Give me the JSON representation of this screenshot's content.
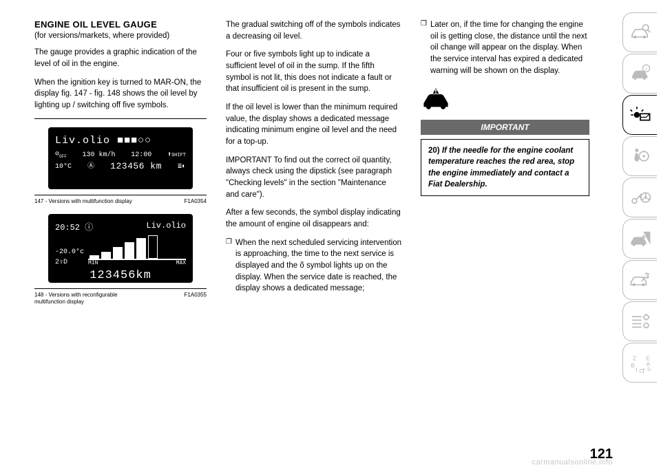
{
  "page_number": "121",
  "watermark": "carmanualsonline.info",
  "col1": {
    "heading": "ENGINE OIL LEVEL GAUGE",
    "subhead": "(for versions/markets, where provided)",
    "p1": "The gauge provides a graphic indication of the level of oil in the engine.",
    "p2": "When the ignition key is turned to MAR-ON, the display fig. 147 - fig. 148 shows the oil level by lighting up / switching off five symbols.",
    "fig1": {
      "title_line": "Liv.olio ■■■○○",
      "speed": "130 km/h",
      "time": "12:00",
      "shift": "SHIFT",
      "temp": "10°C",
      "odometer": "123456 km",
      "caption_left": "147 - Versions with multifunction display",
      "caption_right": "F1A0354"
    },
    "fig2": {
      "time": "20:52",
      "title": "Liv.olio",
      "temp": "-20.0°c",
      "gear": "2⇧D",
      "min": "MIN",
      "max": "MAX",
      "odometer": "123456km",
      "caption_left": "148 - Versions with reconfigurable multifunction display",
      "caption_right": "F1A0355",
      "bars": [
        0.15,
        0.3,
        0.5,
        0.7,
        0.9,
        1.0
      ],
      "bars_filled": [
        true,
        true,
        true,
        true,
        true,
        false
      ]
    }
  },
  "col2": {
    "p1": "The gradual switching off of the symbols indicates a decreasing oil level.",
    "p2": "Four or five symbols light up to indicate a sufficient level of oil in the sump. If the fifth symbol is not lit, this does not indicate a fault or that insufficient oil is present in the sump.",
    "p3": "If the oil level is lower than the minimum required value, the display shows a dedicated message indicating minimum engine oil level and the need for a top-up.",
    "p4": "IMPORTANT To find out the correct oil quantity, always check using the dipstick (see paragraph \"Checking levels\" in the section \"Maintenance and care\").",
    "p5": "After a few seconds, the symbol display indicating the amount of engine oil disappears and:",
    "li1": "When the next scheduled servicing intervention is approaching, the time to the next service is displayed and the õ symbol lights up on the display. When the service date is reached, the display shows a dedicated message;"
  },
  "col3": {
    "li1": "Later on, if the time for changing the engine oil is getting close, the distance until the next oil change will appear on the display. When the service interval has expired a dedicated warning will be shown on the display.",
    "important_label": "IMPORTANT",
    "important_text": "If the needle for the engine coolant temperature reaches the red area, stop the engine immediately and contact a Fiat Dealership.",
    "important_num": "20)"
  },
  "sidebar": {
    "items": [
      {
        "name": "car-magnify-icon",
        "active": false
      },
      {
        "name": "car-info-icon",
        "active": false
      },
      {
        "name": "warning-light-icon",
        "active": true
      },
      {
        "name": "airbag-icon",
        "active": false
      },
      {
        "name": "key-wheel-icon",
        "active": false
      },
      {
        "name": "car-crash-icon",
        "active": false
      },
      {
        "name": "car-wrench-icon",
        "active": false
      },
      {
        "name": "list-gear-icon",
        "active": false
      },
      {
        "name": "letters-icon",
        "active": false
      }
    ]
  }
}
